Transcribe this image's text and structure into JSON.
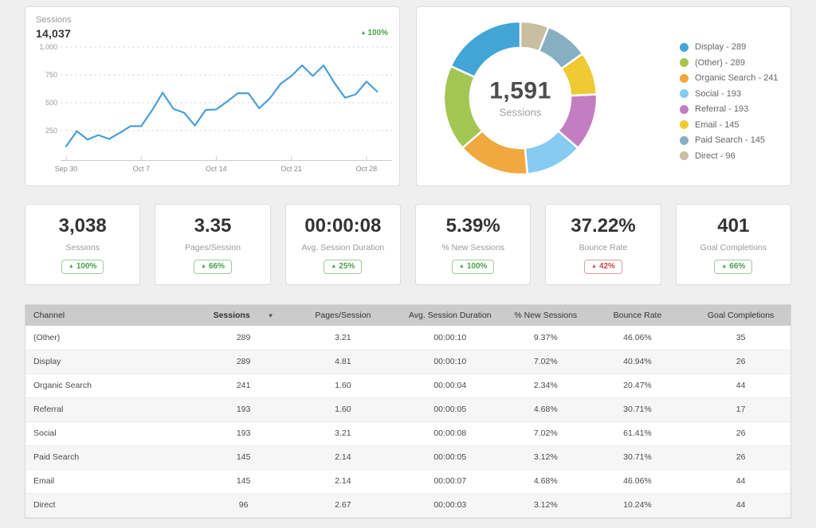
{
  "icons": {
    "up_arrow": "▲",
    "sort_down_arrow": "▼"
  },
  "colors": {
    "line": "#4A9FD8",
    "positive": "#4BA04B",
    "negative": "#C44D4D",
    "grid": "#dddddd"
  },
  "line_card": {
    "metric_label": "Sessions",
    "metric_value": "14,037",
    "delta": "100%",
    "delta_direction": "up"
  },
  "donut_card": {
    "center_value": "1,591",
    "center_label": "Sessions",
    "legend_separator": " - ",
    "legend": [
      {
        "label": "Display",
        "value": 289,
        "color": "#42A5D5"
      },
      {
        "label": "(Other)",
        "value": 289,
        "color": "#A3C653"
      },
      {
        "label": "Organic Search",
        "value": 241,
        "color": "#F0A93F"
      },
      {
        "label": "Social",
        "value": 193,
        "color": "#85CBF2"
      },
      {
        "label": "Referral",
        "value": 193,
        "color": "#C27EC0"
      },
      {
        "label": "Email",
        "value": 145,
        "color": "#EFCA33"
      },
      {
        "label": "Paid Search",
        "value": 145,
        "color": "#87AFC2"
      },
      {
        "label": "Direct",
        "value": 96,
        "color": "#C8BEA0"
      }
    ]
  },
  "kpis": [
    {
      "value": "3,038",
      "label": "Sessions",
      "delta": "100%",
      "negative": false
    },
    {
      "value": "3.35",
      "label": "Pages/Session",
      "delta": "66%",
      "negative": false
    },
    {
      "value": "00:00:08",
      "label": "Avg. Session Duration",
      "delta": "25%",
      "negative": false
    },
    {
      "value": "5.39%",
      "label": "% New Sessions",
      "delta": "100%",
      "negative": false
    },
    {
      "value": "37.22%",
      "label": "Bounce Rate",
      "delta": "42%",
      "negative": true
    },
    {
      "value": "401",
      "label": "Goal Completions",
      "delta": "66%",
      "negative": false
    }
  ],
  "table": {
    "columns": [
      "Channel",
      "Sessions",
      "Pages/Session",
      "Avg. Session Duration",
      "% New Sessions",
      "Bounce Rate",
      "Goal Completions"
    ],
    "column_widths_pct": [
      22,
      13,
      13,
      15,
      10,
      14,
      13
    ],
    "sorted_column": "Sessions",
    "sort_direction": "desc",
    "rows": [
      [
        "(Other)",
        "289",
        "3.21",
        "00:00:10",
        "9.37%",
        "46.06%",
        "35"
      ],
      [
        "Display",
        "289",
        "4.81",
        "00:00:10",
        "7.02%",
        "40.94%",
        "26"
      ],
      [
        "Organic Search",
        "241",
        "1.60",
        "00:00:04",
        "2.34%",
        "20.47%",
        "44"
      ],
      [
        "Referral",
        "193",
        "1.60",
        "00:00:05",
        "4.68%",
        "30.71%",
        "17"
      ],
      [
        "Social",
        "193",
        "3.21",
        "00:00:08",
        "7.02%",
        "61.41%",
        "26"
      ],
      [
        "Paid Search",
        "145",
        "2.14",
        "00:00:05",
        "3.12%",
        "30.71%",
        "26"
      ],
      [
        "Email",
        "145",
        "2.14",
        "00:00:07",
        "4.68%",
        "46.06%",
        "44"
      ],
      [
        "Direct",
        "96",
        "2.67",
        "00:00:03",
        "3.12%",
        "10.24%",
        "44"
      ]
    ]
  },
  "chart_data": [
    {
      "type": "line",
      "title": "Sessions",
      "x": [
        "Sep 30",
        "Oct 1",
        "Oct 2",
        "Oct 3",
        "Oct 4",
        "Oct 5",
        "Oct 6",
        "Oct 7",
        "Oct 8",
        "Oct 9",
        "Oct 10",
        "Oct 11",
        "Oct 12",
        "Oct 13",
        "Oct 14",
        "Oct 15",
        "Oct 16",
        "Oct 17",
        "Oct 18",
        "Oct 19",
        "Oct 20",
        "Oct 21",
        "Oct 22",
        "Oct 23",
        "Oct 24",
        "Oct 25",
        "Oct 26",
        "Oct 27",
        "Oct 28",
        "Oct 29"
      ],
      "values": [
        110,
        245,
        170,
        210,
        175,
        230,
        290,
        290,
        430,
        590,
        445,
        410,
        295,
        435,
        440,
        510,
        585,
        585,
        450,
        540,
        670,
        740,
        835,
        740,
        835,
        680,
        545,
        575,
        690,
        600
      ],
      "tick_indices": [
        0,
        7,
        14,
        21,
        28
      ],
      "tick_labels": [
        "Sep 30",
        "Oct 7",
        "Oct 14",
        "Oct 21",
        "Oct 28"
      ],
      "ylim": [
        0,
        1000
      ],
      "yticks": [
        250,
        500,
        750,
        1000
      ],
      "ytick_labels": [
        "250",
        "500",
        "750",
        "1,000"
      ],
      "grid": "dashed horizontal",
      "line_color": "#4A9FD8",
      "legend_position": "none"
    },
    {
      "type": "pie",
      "subtype": "donut",
      "total_label": "1,591 Sessions",
      "slice_order_clockwise_from_top": [
        "Direct",
        "Paid Search",
        "Email",
        "Referral",
        "Social",
        "Organic Search",
        "(Other)",
        "Display"
      ],
      "legend_position": "right"
    }
  ]
}
